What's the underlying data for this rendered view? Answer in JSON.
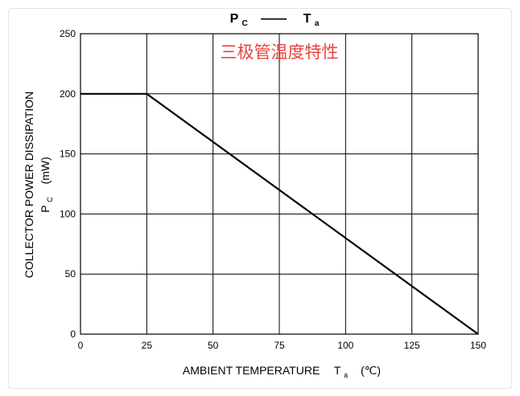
{
  "chart_data": {
    "type": "line",
    "title": {
      "left_main": "P",
      "left_sub": "C",
      "dash": "——",
      "right_main": "T",
      "right_sub": "a"
    },
    "subtitle": "三极管温度特性",
    "subtitle_color": "#e8433f",
    "line_color": "#000000",
    "grid": true,
    "xlabel": {
      "main": "AMBIENT TEMPERATURE",
      "symbol": "T",
      "symbol_sub": "a",
      "unit": "(℃)"
    },
    "ylabel": {
      "line1": "COLLECTOR POWER DISSIPATION",
      "symbol": "P",
      "symbol_sub": "C",
      "unit": "(mW)"
    },
    "xlim": [
      0,
      150
    ],
    "ylim": [
      0,
      250
    ],
    "xticks": [
      0,
      25,
      50,
      75,
      100,
      125,
      150
    ],
    "yticks": [
      0,
      50,
      100,
      150,
      200,
      250
    ],
    "series": [
      {
        "x": [
          0,
          25,
          150
        ],
        "y": [
          200,
          200,
          0
        ]
      }
    ]
  }
}
